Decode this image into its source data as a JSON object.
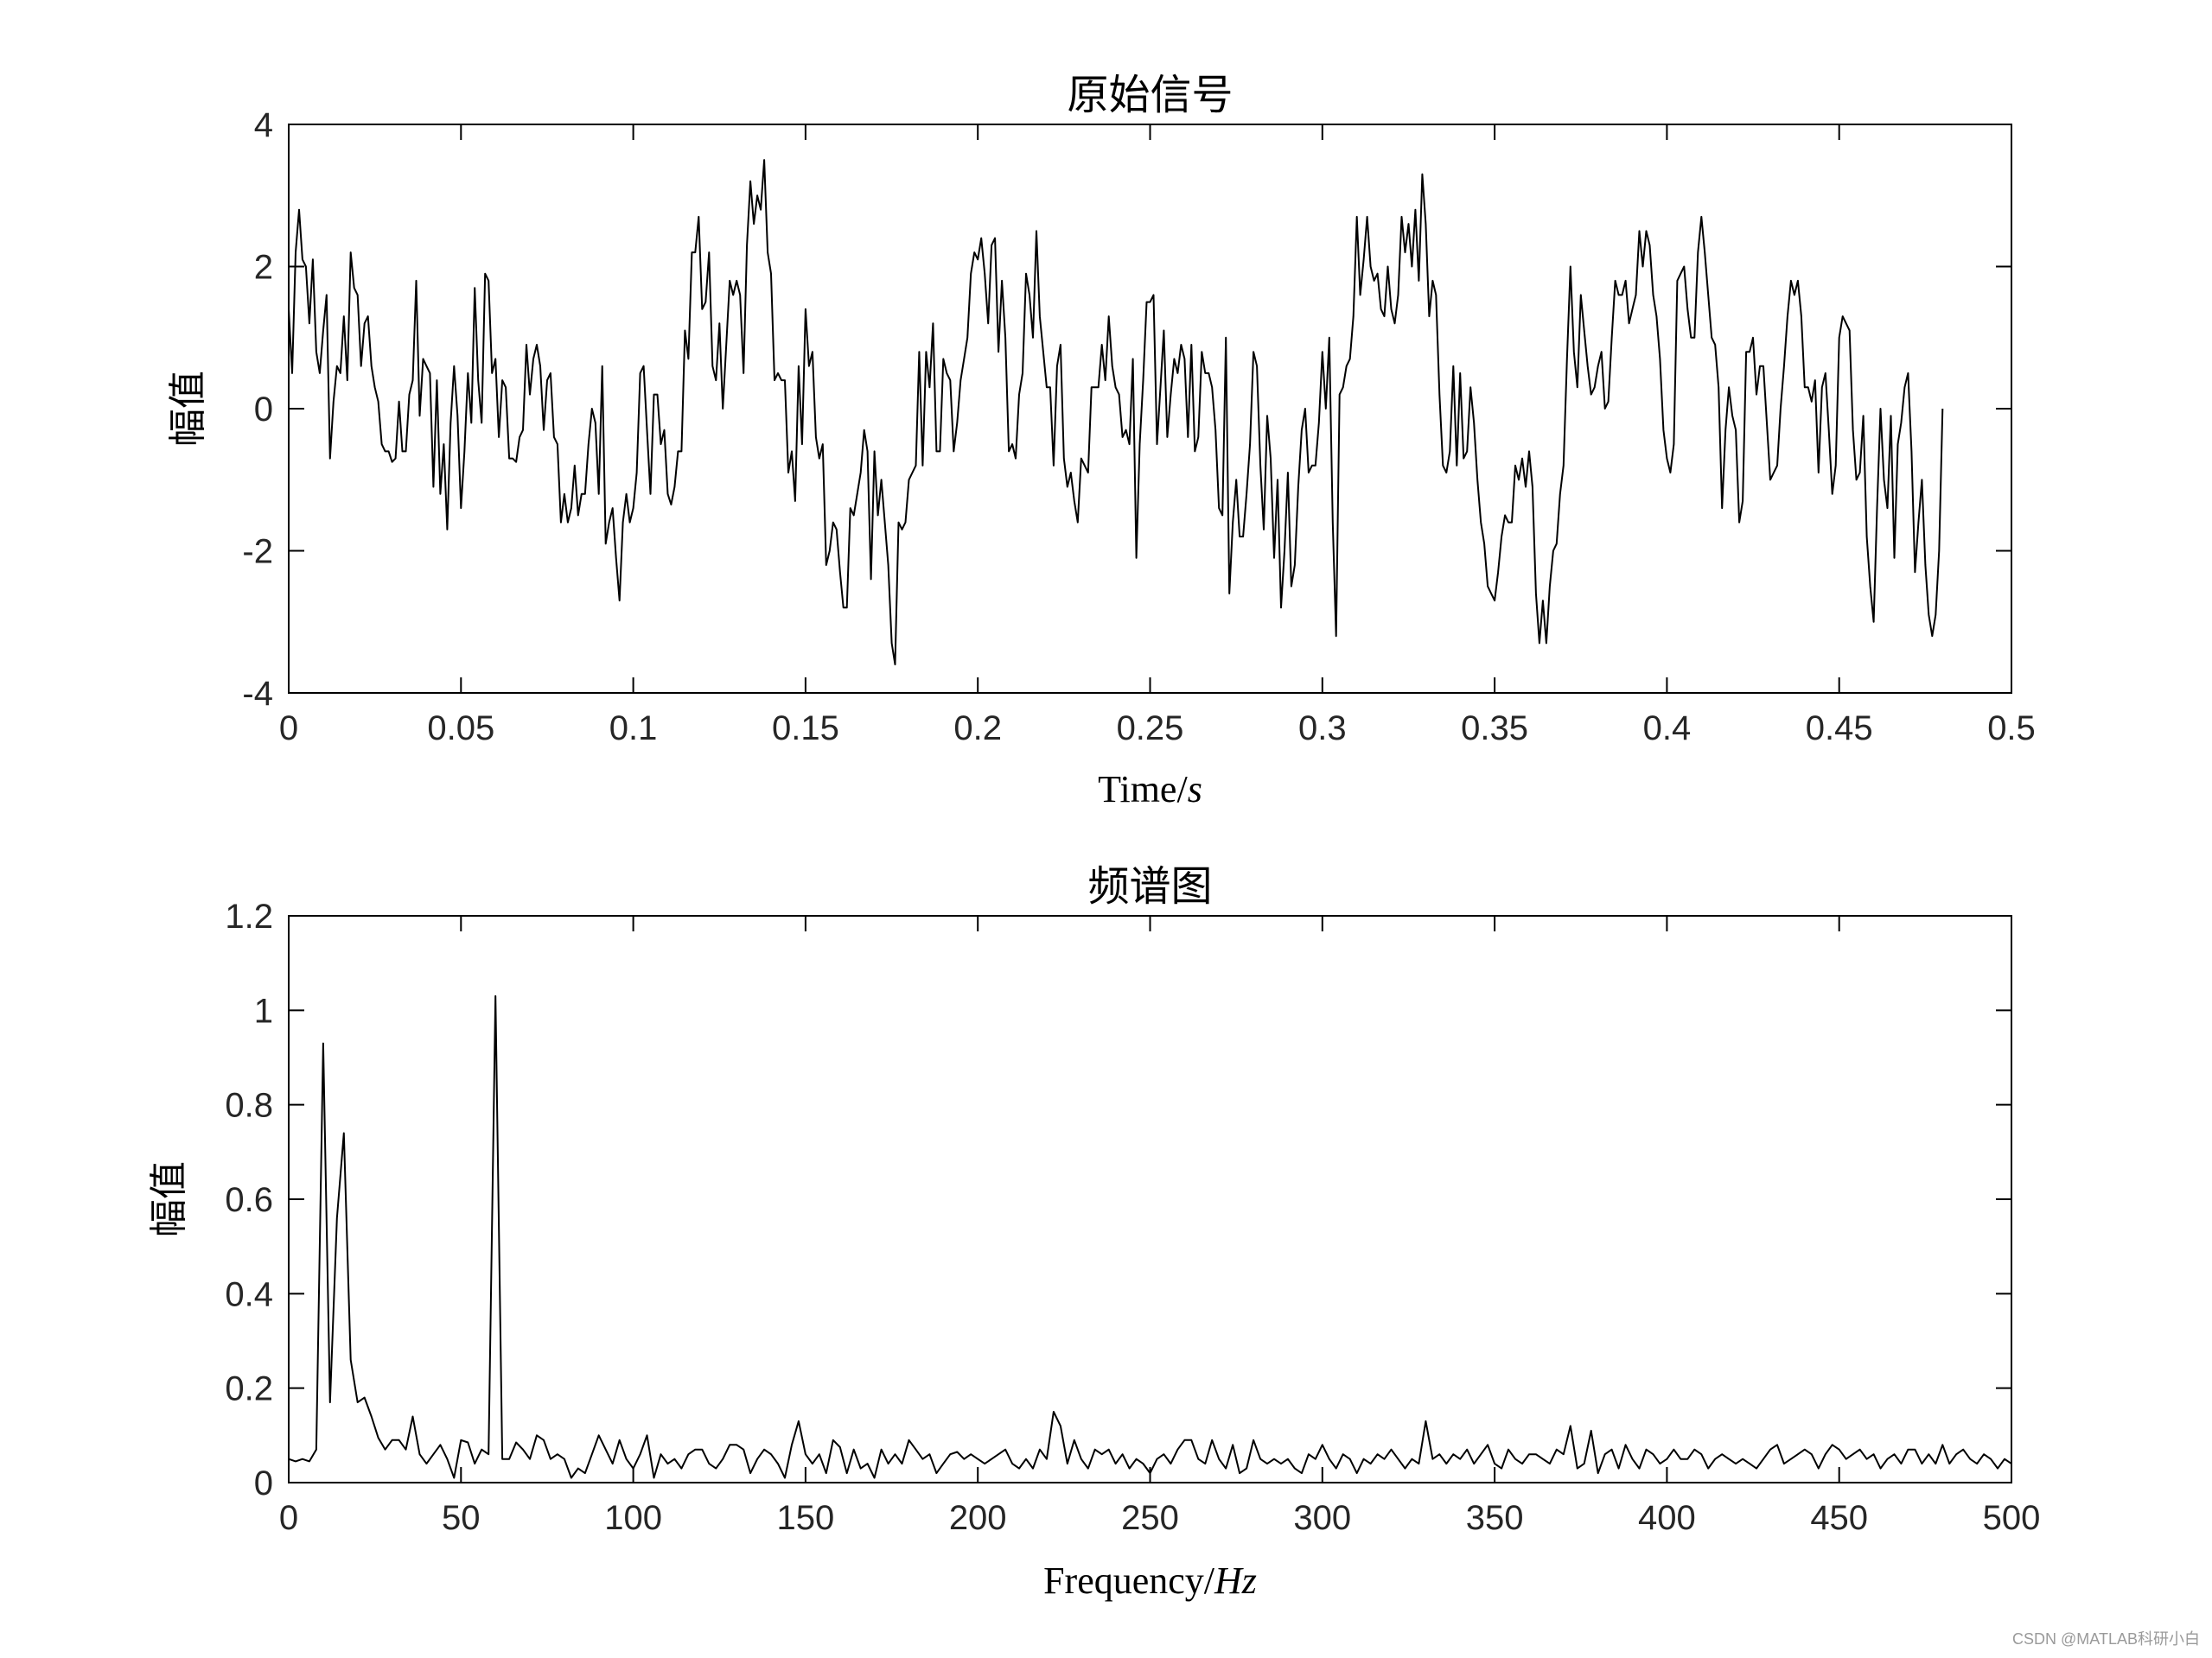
{
  "chart_data": [
    {
      "type": "line",
      "title": "原始信号",
      "xlabel": "Time/",
      "xlabel_italic": "s",
      "ylabel": "幅值",
      "xlim": [
        0,
        0.5
      ],
      "ylim": [
        -4,
        4
      ],
      "xticks": [
        "0",
        "0.05",
        "0.1",
        "0.15",
        "0.2",
        "0.25",
        "0.3",
        "0.35",
        "0.4",
        "0.45",
        "0.5"
      ],
      "yticks": [
        "-4",
        "-2",
        "0",
        "2",
        "4"
      ],
      "grid": false,
      "line_color": "#000000",
      "series": [
        {
          "x_start": 0,
          "x_step": 0.001,
          "values": [
            1.4,
            0.5,
            2.2,
            2.8,
            2.1,
            2.0,
            1.2,
            2.1,
            0.8,
            0.5,
            1.1,
            1.6,
            -0.7,
            0.1,
            0.6,
            0.5,
            1.3,
            0.4,
            2.2,
            1.7,
            1.6,
            0.6,
            1.2,
            1.3,
            0.6,
            0.3,
            0.1,
            -0.5,
            -0.6,
            -0.6,
            -0.75,
            -0.7,
            0.1,
            -0.6,
            -0.6,
            0.2,
            0.4,
            1.8,
            -0.1,
            0.7,
            0.6,
            0.5,
            -1.1,
            0.4,
            -1.2,
            -0.5,
            -1.7,
            -0.2,
            0.6,
            -0.1,
            -1.4,
            -0.6,
            0.5,
            -0.2,
            1.7,
            0.4,
            -0.2,
            1.9,
            1.8,
            0.5,
            0.7,
            -0.4,
            0.4,
            0.3,
            -0.7,
            -0.7,
            -0.75,
            -0.4,
            -0.3,
            0.9,
            0.2,
            0.7,
            0.9,
            0.6,
            -0.3,
            0.4,
            0.5,
            -0.4,
            -0.5,
            -1.6,
            -1.2,
            -1.6,
            -1.4,
            -0.8,
            -1.5,
            -1.2,
            -1.2,
            -0.5,
            0.0,
            -0.2,
            -1.2,
            0.6,
            -1.9,
            -1.6,
            -1.4,
            -2.1,
            -2.7,
            -1.6,
            -1.2,
            -1.6,
            -1.4,
            -0.9,
            0.5,
            0.6,
            -0.3,
            -1.2,
            0.2,
            0.2,
            -0.5,
            -0.3,
            -1.2,
            -1.35,
            -1.1,
            -0.6,
            -0.6,
            1.1,
            0.7,
            2.2,
            2.2,
            2.7,
            1.4,
            1.5,
            2.2,
            0.6,
            0.4,
            1.2,
            0.0,
            0.9,
            1.8,
            1.6,
            1.8,
            1.6,
            0.5,
            2.3,
            3.2,
            2.6,
            3.0,
            2.8,
            3.5,
            2.2,
            1.9,
            0.4,
            0.5,
            0.4,
            0.4,
            -0.9,
            -0.6,
            -1.3,
            0.6,
            -0.5,
            1.4,
            0.6,
            0.8,
            -0.4,
            -0.7,
            -0.5,
            -2.2,
            -2.0,
            -1.6,
            -1.7,
            -2.3,
            -2.8,
            -2.8,
            -1.4,
            -1.5,
            -1.2,
            -0.9,
            -0.3,
            -0.6,
            -2.4,
            -0.6,
            -1.5,
            -1.0,
            -1.6,
            -2.2,
            -3.3,
            -3.6,
            -1.6,
            -1.7,
            -1.6,
            -1.0,
            -0.9,
            -0.8,
            0.8,
            -0.8,
            0.8,
            0.3,
            1.2,
            -0.6,
            -0.6,
            0.7,
            0.5,
            0.4,
            -0.6,
            -0.2,
            0.4,
            0.7,
            1.0,
            1.9,
            2.2,
            2.1,
            2.4,
            1.9,
            1.2,
            2.3,
            2.4,
            0.8,
            1.8,
            1.0,
            -0.6,
            -0.5,
            -0.7,
            0.2,
            0.5,
            1.9,
            1.6,
            1.0,
            2.5,
            1.3,
            0.8,
            0.3,
            0.3,
            -0.8,
            0.6,
            0.9,
            -0.7,
            -1.1,
            -0.9,
            -1.3,
            -1.6,
            -0.7,
            -0.8,
            -0.9,
            0.3,
            0.3,
            0.3,
            0.9,
            0.4,
            1.3,
            0.6,
            0.3,
            0.2,
            -0.4,
            -0.3,
            -0.5,
            0.7,
            -2.1,
            -0.5,
            0.4,
            1.5,
            1.5,
            1.6,
            -0.5,
            0.3,
            1.1,
            -0.4,
            0.2,
            0.7,
            0.5,
            0.9,
            0.7,
            -0.4,
            0.9,
            -0.6,
            -0.4,
            0.8,
            0.5,
            0.5,
            0.3,
            -0.3,
            -1.4,
            -1.5,
            1.0,
            -2.6,
            -1.6,
            -1.0,
            -1.8,
            -1.8,
            -1.2,
            -0.5,
            0.8,
            0.6,
            -0.8,
            -1.7,
            -0.1,
            -0.7,
            -2.1,
            -1.0,
            -2.8,
            -2.0,
            -0.9,
            -2.5,
            -2.2,
            -1.1,
            -0.3,
            0.0,
            -0.9,
            -0.8,
            -0.8,
            -0.2,
            0.8,
            0.0,
            1.0,
            -1.6,
            -3.2,
            0.2,
            0.3,
            0.6,
            0.7,
            1.3,
            2.7,
            1.6,
            2.1,
            2.7,
            2.0,
            1.8,
            1.9,
            1.4,
            1.3,
            2.0,
            1.4,
            1.2,
            1.6,
            2.7,
            2.2,
            2.6,
            2.0,
            2.8,
            1.8,
            3.3,
            2.6,
            1.3,
            1.8,
            1.6,
            0.2,
            -0.8,
            -0.9,
            -0.6,
            0.6,
            -0.8,
            0.5,
            -0.7,
            -0.6,
            0.3,
            -0.2,
            -1.0,
            -1.6,
            -1.9,
            -2.5,
            -2.6,
            -2.7,
            -2.3,
            -1.8,
            -1.5,
            -1.6,
            -1.6,
            -0.8,
            -1.0,
            -0.7,
            -1.1,
            -0.6,
            -1.1,
            -2.6,
            -3.3,
            -2.7,
            -3.3,
            -2.5,
            -2.0,
            -1.9,
            -1.2,
            -0.8,
            0.7,
            2.0,
            0.8,
            0.3,
            1.6,
            1.1,
            0.6,
            0.2,
            0.3,
            0.6,
            0.8,
            0.0,
            0.1,
            1.0,
            1.8,
            1.6,
            1.6,
            1.8,
            1.2,
            1.4,
            1.6,
            2.5,
            2.0,
            2.5,
            2.3,
            1.6,
            1.3,
            0.7,
            -0.3,
            -0.7,
            -0.9,
            -0.5,
            1.8,
            1.9,
            2.0,
            1.4,
            1.0,
            1.0,
            2.2,
            2.7,
            2.2,
            1.6,
            1.0,
            0.9,
            0.3,
            -1.4,
            -0.3,
            0.3,
            -0.1,
            -0.3,
            -1.6,
            -1.3,
            0.8,
            0.8,
            1.0,
            0.2,
            0.6,
            0.6,
            -0.2,
            -1.0,
            -0.9,
            -0.8,
            0.0,
            0.6,
            1.3,
            1.8,
            1.6,
            1.8,
            1.3,
            0.3,
            0.3,
            0.1,
            0.4,
            -0.9,
            0.3,
            0.5,
            -0.3,
            -1.2,
            -0.8,
            1.0,
            1.3,
            1.2,
            1.1,
            -0.3,
            -1.0,
            -0.9,
            -0.1,
            -1.8,
            -2.5,
            -3.0,
            -1.4,
            0.0,
            -1.0,
            -1.4,
            -0.1,
            -2.1,
            -0.5,
            -0.2,
            0.3,
            0.5,
            -0.6,
            -2.3,
            -1.6,
            -1.0,
            -2.2,
            -2.9,
            -3.2,
            -2.9,
            -2.0,
            0.0
          ]
        }
      ]
    },
    {
      "type": "line",
      "title": "频谱图",
      "xlabel": "Frequency/",
      "xlabel_italic": "Hz",
      "ylabel": "幅值",
      "xlim": [
        0,
        500
      ],
      "ylim": [
        0,
        1.2
      ],
      "xticks": [
        "0",
        "50",
        "100",
        "150",
        "200",
        "250",
        "300",
        "350",
        "400",
        "450",
        "500"
      ],
      "yticks": [
        "0",
        "0.2",
        "0.4",
        "0.6",
        "0.8",
        "1",
        "1.2"
      ],
      "grid": false,
      "line_color": "#000000",
      "series": [
        {
          "x_start": 0,
          "x_step": 2,
          "values": [
            0.05,
            0.045,
            0.05,
            0.045,
            0.07,
            0.93,
            0.17,
            0.56,
            0.74,
            0.26,
            0.17,
            0.18,
            0.14,
            0.095,
            0.07,
            0.09,
            0.09,
            0.07,
            0.14,
            0.06,
            0.04,
            0.06,
            0.08,
            0.05,
            0.01,
            0.09,
            0.085,
            0.04,
            0.07,
            0.06,
            1.03,
            0.05,
            0.05,
            0.085,
            0.07,
            0.05,
            0.1,
            0.09,
            0.05,
            0.06,
            0.05,
            0.01,
            0.03,
            0.02,
            0.06,
            0.1,
            0.07,
            0.04,
            0.09,
            0.05,
            0.03,
            0.06,
            0.1,
            0.01,
            0.06,
            0.04,
            0.05,
            0.03,
            0.06,
            0.07,
            0.07,
            0.04,
            0.03,
            0.05,
            0.08,
            0.08,
            0.07,
            0.02,
            0.05,
            0.07,
            0.06,
            0.04,
            0.01,
            0.08,
            0.13,
            0.06,
            0.04,
            0.06,
            0.02,
            0.09,
            0.075,
            0.02,
            0.07,
            0.03,
            0.04,
            0.01,
            0.07,
            0.04,
            0.06,
            0.04,
            0.09,
            0.07,
            0.05,
            0.06,
            0.02,
            0.04,
            0.06,
            0.065,
            0.05,
            0.06,
            0.05,
            0.04,
            0.05,
            0.06,
            0.07,
            0.04,
            0.03,
            0.05,
            0.03,
            0.07,
            0.05,
            0.15,
            0.12,
            0.04,
            0.09,
            0.05,
            0.03,
            0.07,
            0.06,
            0.07,
            0.04,
            0.06,
            0.03,
            0.05,
            0.04,
            0.02,
            0.05,
            0.06,
            0.04,
            0.07,
            0.09,
            0.09,
            0.05,
            0.04,
            0.09,
            0.05,
            0.03,
            0.08,
            0.02,
            0.03,
            0.09,
            0.05,
            0.04,
            0.05,
            0.04,
            0.05,
            0.03,
            0.02,
            0.06,
            0.05,
            0.08,
            0.05,
            0.03,
            0.06,
            0.05,
            0.02,
            0.05,
            0.04,
            0.06,
            0.05,
            0.07,
            0.05,
            0.03,
            0.05,
            0.04,
            0.13,
            0.05,
            0.06,
            0.04,
            0.06,
            0.05,
            0.07,
            0.04,
            0.06,
            0.08,
            0.04,
            0.03,
            0.07,
            0.05,
            0.04,
            0.06,
            0.06,
            0.05,
            0.04,
            0.07,
            0.06,
            0.12,
            0.03,
            0.04,
            0.11,
            0.02,
            0.06,
            0.07,
            0.03,
            0.08,
            0.05,
            0.03,
            0.07,
            0.06,
            0.04,
            0.05,
            0.07,
            0.05,
            0.05,
            0.07,
            0.06,
            0.03,
            0.05,
            0.06,
            0.05,
            0.04,
            0.05,
            0.04,
            0.03,
            0.05,
            0.07,
            0.08,
            0.04,
            0.05,
            0.06,
            0.07,
            0.06,
            0.03,
            0.06,
            0.08,
            0.07,
            0.05,
            0.06,
            0.07,
            0.05,
            0.06,
            0.03,
            0.05,
            0.06,
            0.04,
            0.07,
            0.07,
            0.04,
            0.06,
            0.04,
            0.08,
            0.04,
            0.06,
            0.07,
            0.05,
            0.04,
            0.06,
            0.05,
            0.03,
            0.05,
            0.04,
            0.06,
            0.05,
            0.06,
            0.04,
            0.07,
            0.05,
            0.04,
            0.06,
            0.06,
            0.05,
            0.05,
            0.02,
            0.05,
            0.1,
            0.04,
            0.04,
            0.05,
            0.06,
            0.04,
            0.03,
            0.05,
            0.06,
            0.04,
            0.02,
            0.06,
            0.04,
            0.08
          ]
        }
      ]
    }
  ],
  "watermark": "CSDN @MATLAB科研小白"
}
